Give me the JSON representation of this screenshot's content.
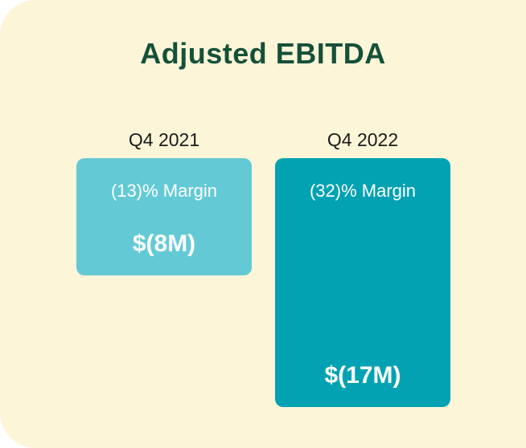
{
  "page": {
    "outer_background": "#FFFFFF",
    "card_background": "#FCF5D8"
  },
  "chart_data": {
    "type": "bar",
    "title": "Adjusted EBITDA",
    "title_color": "#15503A",
    "categories": [
      "Q4 2021",
      "Q4 2022"
    ],
    "series": [
      {
        "name": "Adjusted EBITDA ($M)",
        "values": [
          -8,
          -17
        ]
      }
    ],
    "margin_pct": [
      -13,
      -32
    ],
    "ylim": [
      -17,
      0
    ],
    "xlabel": "",
    "ylabel": "",
    "grid": false,
    "legend_position": "none",
    "orientation": "vertical, bars extend downward from common top baseline (negative values)",
    "inner_label_color": "#FFFFFF",
    "category_label_color": "#1A1A1A",
    "bars": [
      {
        "category": "Q4 2021",
        "value_musd": -8,
        "value_label": "$(8M)",
        "margin_pct": -13,
        "margin_label": "(13)% Margin",
        "color": "#63CAD5"
      },
      {
        "category": "Q4 2022",
        "value_musd": -17,
        "value_label": "$(17M)",
        "margin_pct": -32,
        "margin_label": "(32)% Margin",
        "color": "#03A2B2"
      }
    ]
  }
}
